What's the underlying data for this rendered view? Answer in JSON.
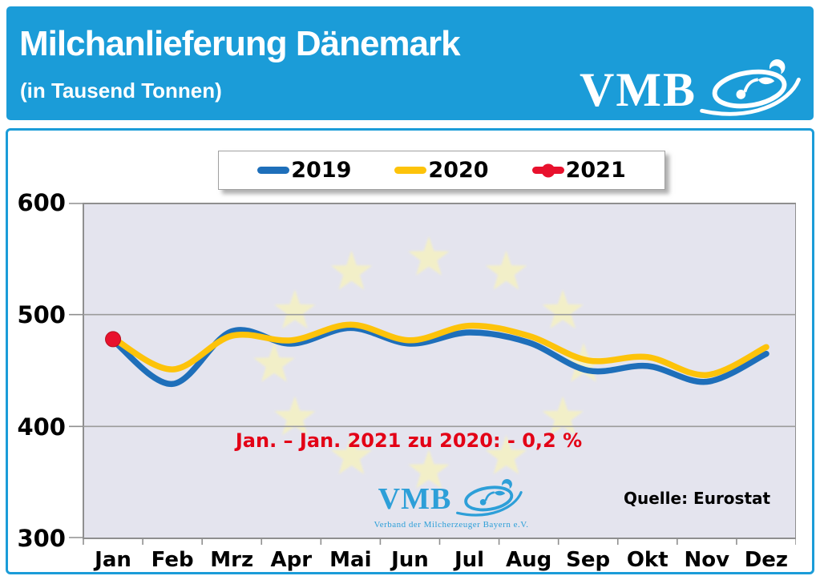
{
  "header": {
    "title": "Milchanlieferung Dänemark",
    "subtitle": "(in Tausend Tonnen)",
    "logo_text": "VMB",
    "bg_color": "#1b9cd8"
  },
  "chart_data": {
    "type": "line",
    "title": "Milchanlieferung Dänemark (in Tausend Tonnen)",
    "categories": [
      "Jan",
      "Feb",
      "Mrz",
      "Apr",
      "Mai",
      "Jun",
      "Jul",
      "Aug",
      "Sep",
      "Okt",
      "Nov",
      "Dez"
    ],
    "y_ticks": [
      600,
      500,
      400,
      300
    ],
    "ylim": [
      300,
      600
    ],
    "grid": true,
    "legend_position": "top-center",
    "plot_bg_color": "#e4e4ee",
    "series": [
      {
        "name": "2019",
        "color": "#1e6fba",
        "values": [
          477,
          438,
          485,
          474,
          488,
          474,
          484,
          475,
          450,
          454,
          440,
          465
        ]
      },
      {
        "name": "2020",
        "color": "#fdc30a",
        "values": [
          479,
          451,
          481,
          477,
          491,
          477,
          490,
          481,
          459,
          462,
          446,
          471
        ]
      },
      {
        "name": "2021",
        "color": "#e8112d",
        "marker": "circle",
        "values": [
          478,
          null,
          null,
          null,
          null,
          null,
          null,
          null,
          null,
          null,
          null,
          null
        ]
      }
    ],
    "annotation": "Jan. – Jan. 2021 zu 2020:  - 0,2 %",
    "source": "Quelle: Eurostat",
    "watermark": {
      "eu_stars": 12,
      "star_color": "#f5f1c2",
      "logo": "VMB",
      "logo_subtitle": "Verband der Milcherzeuger Bayern e.V."
    }
  }
}
